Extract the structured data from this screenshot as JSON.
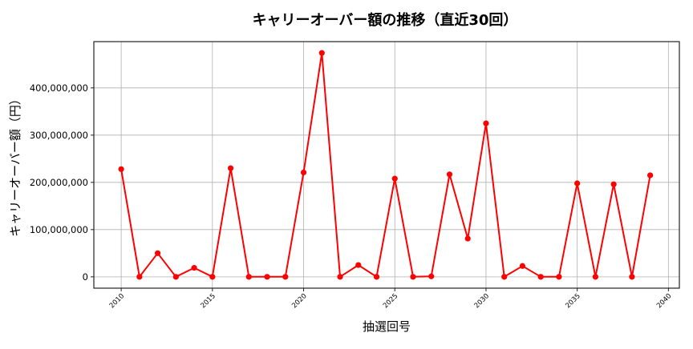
{
  "chart_data": {
    "type": "line",
    "title": "キャリーオーバー額の推移（直近30回）",
    "xlabel": "抽選回号",
    "ylabel": "キャリーオーバー額（円）",
    "x": [
      2010,
      2011,
      2012,
      2013,
      2014,
      2015,
      2016,
      2017,
      2018,
      2019,
      2020,
      2021,
      2022,
      2023,
      2024,
      2025,
      2026,
      2027,
      2028,
      2029,
      2030,
      2031,
      2032,
      2033,
      2034,
      2035,
      2036,
      2037,
      2038,
      2039
    ],
    "series": [
      {
        "name": "キャリーオーバー額",
        "color": "#ff0000",
        "marker": "circle",
        "values": [
          228000000,
          0,
          50000000,
          0,
          19000000,
          0,
          230000000,
          0,
          0,
          0,
          221000000,
          474000000,
          0,
          25000000,
          0,
          208000000,
          0,
          1000000,
          217000000,
          81000000,
          325000000,
          0,
          23000000,
          0,
          0,
          198000000,
          0,
          196000000,
          0,
          215000000
        ]
      }
    ],
    "xticks": [
      2010,
      2015,
      2020,
      2025,
      2030,
      2035,
      2040
    ],
    "xtick_labels": [
      "2010",
      "2015",
      "2020",
      "2025",
      "2030",
      "2035",
      "2040"
    ],
    "yticks": [
      0,
      100000000,
      200000000,
      300000000,
      400000000
    ],
    "ytick_labels": [
      "0",
      "100,000,000",
      "200,000,000",
      "300,000,000",
      "400,000,000"
    ],
    "xlim": [
      2008.5,
      2040.6
    ],
    "ylim": [
      -24000000,
      498000000
    ],
    "grid": true,
    "legend": null
  }
}
